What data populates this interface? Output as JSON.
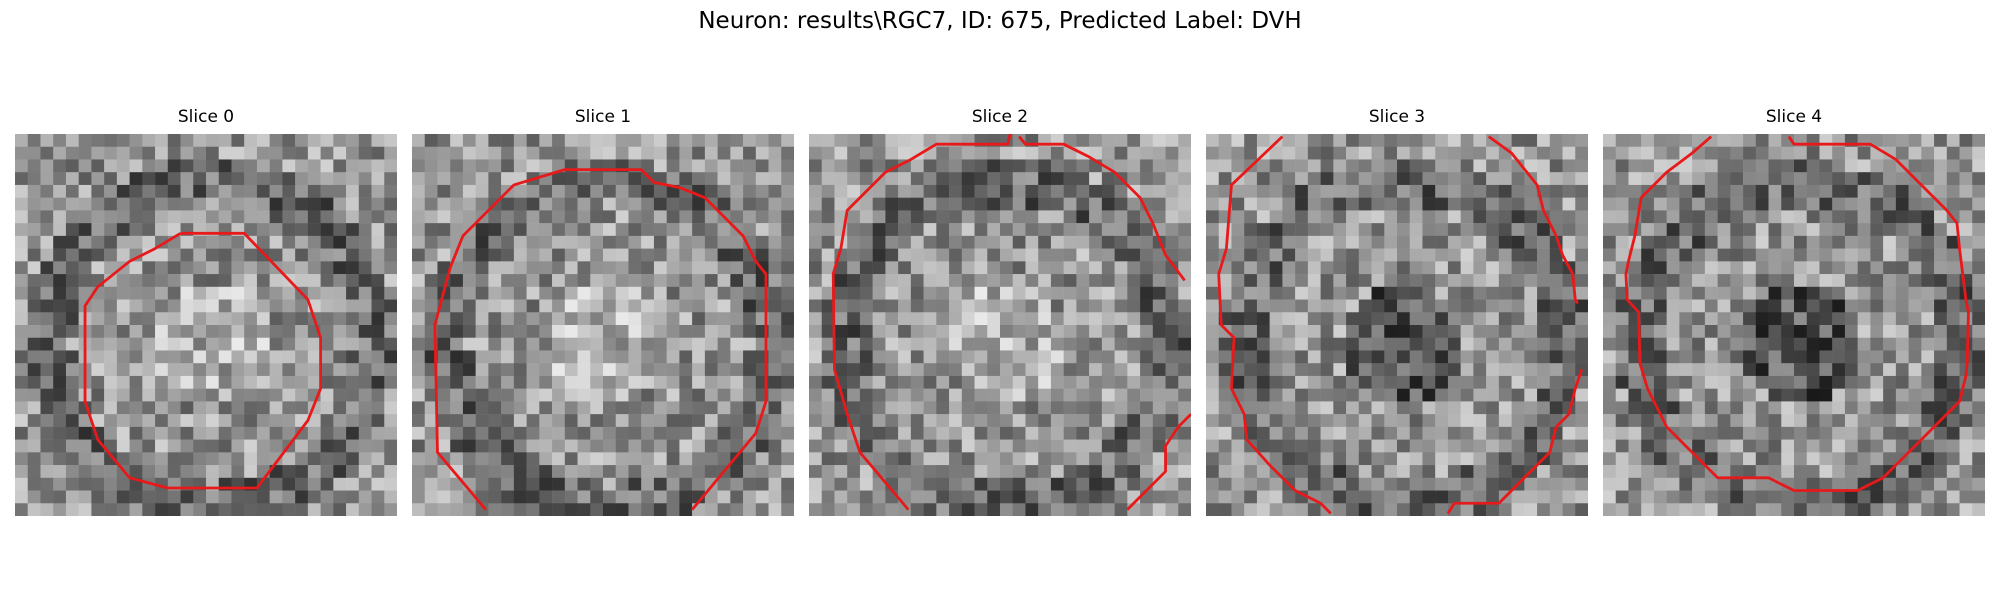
{
  "figure": {
    "title": "Neuron: results\\RGC7, ID: 675, Predicted Label: DVH",
    "slices": [
      {
        "label": "Slice 0"
      },
      {
        "label": "Slice 1"
      },
      {
        "label": "Slice 2"
      },
      {
        "label": "Slice 3"
      },
      {
        "label": "Slice 4"
      }
    ],
    "image_colormap": "gray",
    "contour_color": "#e8191a"
  }
}
